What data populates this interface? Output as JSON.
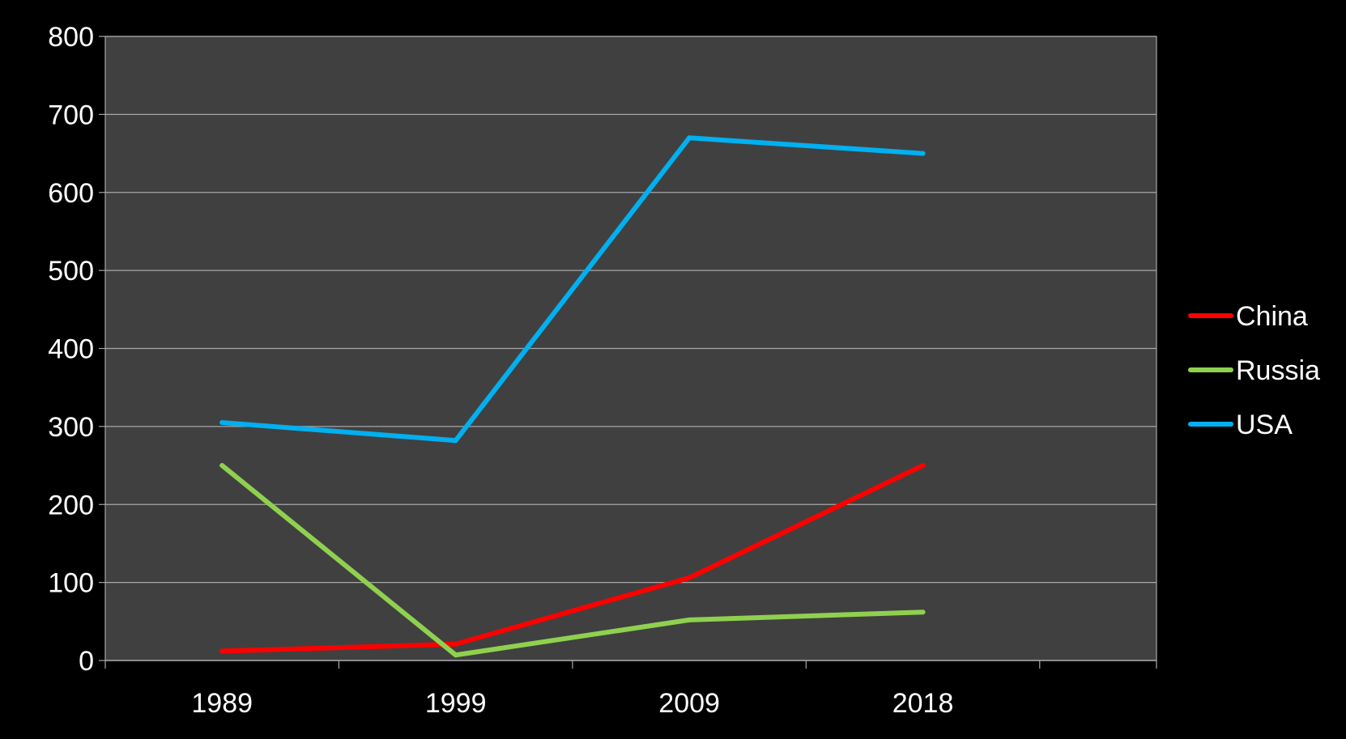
{
  "chart_data": {
    "type": "line",
    "title": "",
    "xlabel": "",
    "ylabel": "",
    "categories": [
      "1989",
      "1999",
      "2009",
      "2018"
    ],
    "ylim": [
      0,
      800
    ],
    "yticks": [
      0,
      100,
      200,
      300,
      400,
      500,
      600,
      700,
      800
    ],
    "grid": true,
    "legend_position": "right",
    "plot_background": "#404040",
    "page_background": "#000000",
    "series": [
      {
        "name": "China",
        "color": "#ff0000",
        "values": [
          12,
          21,
          106,
          250
        ]
      },
      {
        "name": "Russia",
        "color": "#8fd14f",
        "values": [
          250,
          7,
          52,
          62
        ]
      },
      {
        "name": "USA",
        "color": "#00b0f0",
        "values": [
          305,
          282,
          670,
          650
        ]
      }
    ]
  }
}
